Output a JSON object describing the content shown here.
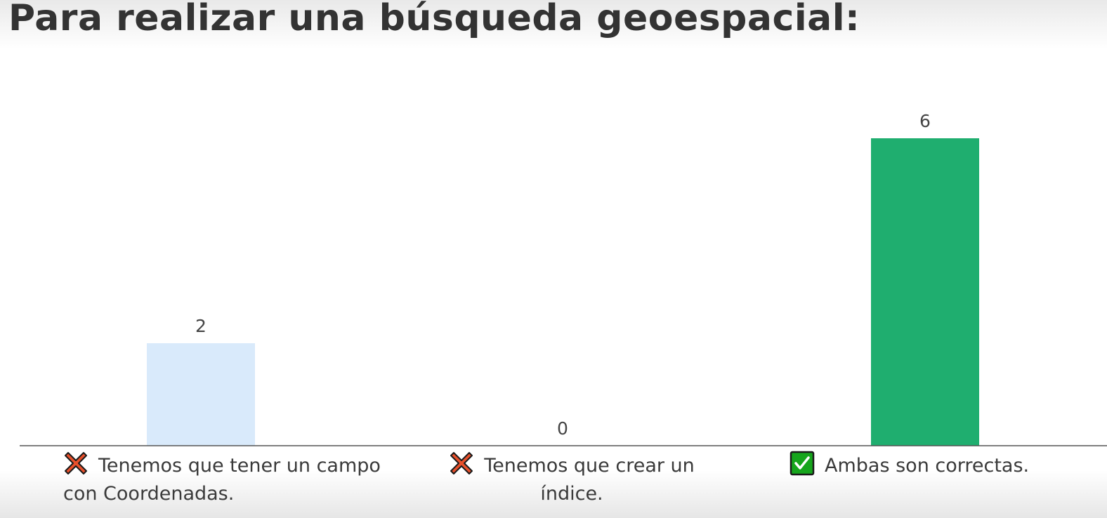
{
  "title": "Para realizar una búsqueda geoespacial:",
  "chart_data": {
    "type": "bar",
    "title": "Para realizar una búsqueda geoespacial:",
    "categories": [
      "Tenemos que tener un campo con Coordenadas.",
      "Tenemos que crear un índice.",
      "Ambas son correctas."
    ],
    "values": [
      2,
      0,
      6
    ],
    "category_marks": [
      "cross-mark-icon",
      "cross-mark-icon",
      "check-mark-icon"
    ],
    "bar_colors": [
      "#d9eafb",
      "#d9eafb",
      "#1fae6f"
    ],
    "ylim": [
      0,
      6
    ],
    "grid": false,
    "legend": "none",
    "xlabel": "",
    "ylabel": ""
  }
}
